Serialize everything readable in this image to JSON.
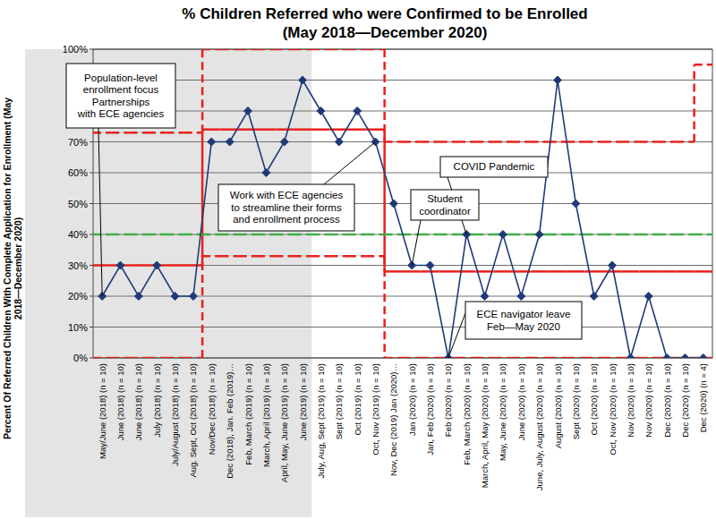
{
  "chart_data": {
    "type": "line",
    "title": "% Children Referred who were Confirmed to be Enrolled",
    "subtitle": "(May 2018—December 2020)",
    "ylabel": [
      "Percent Of Referred Children With Complete Application for Enrollment (May",
      "2018—December 2020)"
    ],
    "categories": [
      "May/June (2018) (n = 10)",
      "June (2018) (n = 10)",
      "June (2018) (n = 10)",
      "July (2018) (n = 10)",
      "July/August (2018) (n = 10)",
      "Aug. Sept, Oct (2018) (n = 10)",
      "Nov/Dec (2018) (n = 10)",
      "Dec (2018), Jan. Feb (2019)…",
      "Feb, March (2019) (n = 10)",
      "March, April (2019) (n = 10)",
      "April, May, June (2019) (n = 10)",
      "June (2019) (n = 10)",
      "July, Aug, Sept (2019) (n = 10)",
      "Sept (2019) (n = 10)",
      "Oct (2019) (n = 10)",
      "Oct, Nov (2019) (n = 10)",
      "Nov, Dec (2019) Jan (2020)…",
      "Jan (2020) (n = 10)",
      "Jan, Feb (2020) (n = 10)",
      "Feb (2020) (n = 10)",
      "Feb, March (2020) (n = 10)",
      "March, April, May (2020) (n = 10)",
      "May, June (2020) (n = 10)",
      "June (2020) (n = 10)",
      "June, July, August (2020) (n = 10)",
      "August (2020) (n = 10)",
      "Sept (2020) (n = 10)",
      "Oct (2020) (n = 10)",
      "Oct, Nov (2020) (n = 10)",
      "Nov (2020) (n = 10)",
      "Nov (2020) (n = 10)",
      "Dec (2020) (n = 10)",
      "Dec (2020) (n = 10)",
      "Dec (2020) (n = 4)"
    ],
    "series": [
      {
        "type": "line",
        "color": "#1f3a77",
        "marker": "diamond",
        "line_style": "solid",
        "values": [
          20,
          30,
          20,
          30,
          20,
          20,
          70,
          70,
          80,
          60,
          70,
          90,
          80,
          70,
          80,
          70,
          50,
          30,
          30,
          0,
          40,
          20,
          40,
          20,
          40,
          90,
          50,
          20,
          30,
          0,
          20,
          0,
          0,
          0
        ]
      },
      {
        "type": "step",
        "color": "#e8201c",
        "marker": "none",
        "line_style": "solid",
        "values": [
          30,
          30,
          30,
          30,
          30,
          30,
          74,
          74,
          74,
          74,
          74,
          74,
          74,
          74,
          74,
          74,
          28,
          28,
          28,
          28,
          28,
          28,
          28,
          28,
          28,
          28,
          28,
          28,
          28,
          28,
          28,
          28,
          28,
          28
        ]
      },
      {
        "type": "step",
        "color": "#e8201c",
        "marker": "none",
        "line_style": "dashed",
        "values": [
          73,
          73,
          73,
          73,
          73,
          73,
          100,
          100,
          100,
          100,
          100,
          100,
          100,
          100,
          100,
          100,
          70,
          70,
          70,
          70,
          70,
          70,
          70,
          70,
          70,
          70,
          70,
          70,
          70,
          70,
          70,
          70,
          70,
          95
        ]
      },
      {
        "type": "step",
        "color": "#e8201c",
        "marker": "none",
        "line_style": "dashed",
        "values": [
          0,
          0,
          0,
          0,
          0,
          0,
          33,
          33,
          33,
          33,
          33,
          33,
          33,
          33,
          33,
          33,
          0,
          0,
          0,
          0,
          0,
          0,
          0,
          0,
          0,
          0,
          0,
          0,
          0,
          0,
          0,
          0,
          0,
          0
        ]
      },
      {
        "type": "step",
        "color": "#3cb043",
        "marker": "none",
        "line_style": "dashed",
        "values": [
          40,
          40,
          40,
          40,
          40,
          40,
          40,
          40,
          40,
          40,
          40,
          40,
          40,
          40,
          40,
          40,
          40,
          40,
          40,
          40,
          40,
          40,
          40,
          40,
          40,
          40,
          40,
          40,
          40,
          40,
          40,
          40,
          40,
          40
        ]
      }
    ],
    "ylim": [
      0,
      100
    ],
    "yticks": [
      {
        "value": 0,
        "label": "0%"
      },
      {
        "value": 10,
        "label": "10%"
      },
      {
        "value": 20,
        "label": "20%"
      },
      {
        "value": 30,
        "label": "30%"
      },
      {
        "value": 40,
        "label": "40%"
      },
      {
        "value": 50,
        "label": "50%"
      },
      {
        "value": 60,
        "label": "60%"
      },
      {
        "value": 70,
        "label": "70%"
      },
      {
        "value": 80,
        "label": "80%"
      },
      {
        "value": 90,
        "label": "90%"
      },
      {
        "value": 100,
        "label": "100%"
      }
    ],
    "grid": true,
    "shaded_positions": [
      0,
      11
    ],
    "annotations": [
      {
        "lines": [
          "Population-level",
          "enrollment focus",
          "Partnerships",
          "with ECE agencies"
        ],
        "point": 0
      },
      {
        "lines": [
          "Work with ECE agencies",
          "to streamline their forms",
          "and enrollment process"
        ],
        "point": 15
      },
      {
        "lines": [
          "COVID Pandemic"
        ],
        "point": 20
      },
      {
        "lines": [
          "Student",
          "coordinator"
        ],
        "point": 17
      },
      {
        "lines": [
          "ECE navigator leave",
          "Feb—May 2020"
        ],
        "point": 19
      }
    ]
  }
}
